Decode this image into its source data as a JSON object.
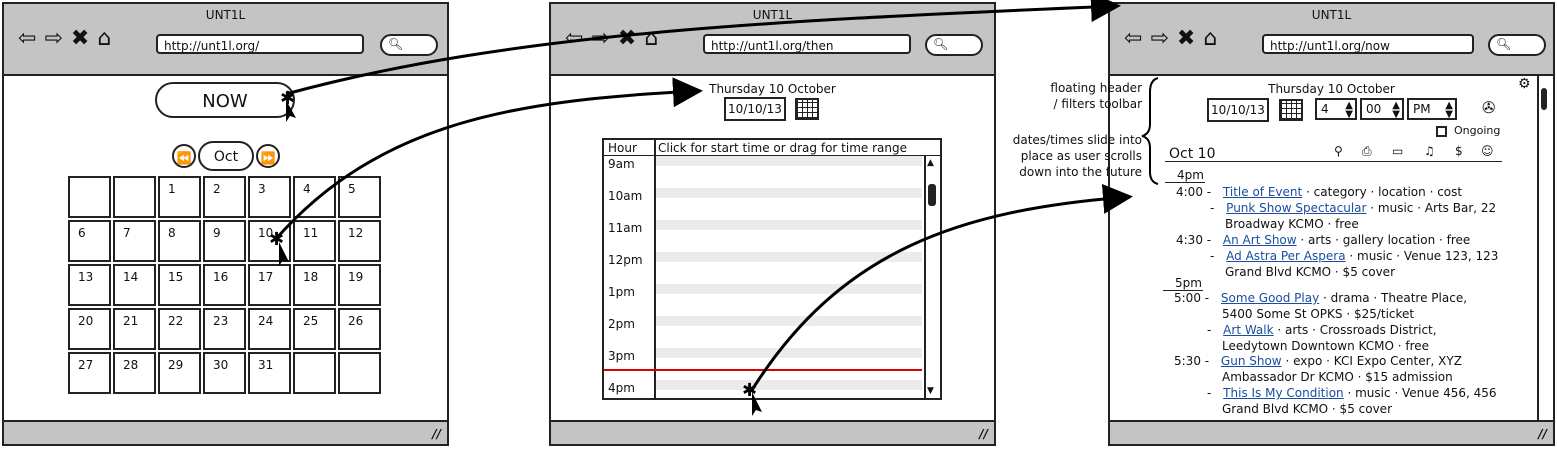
{
  "windows": {
    "left": {
      "title": "UNT1L",
      "url": "http://unt1l.org/"
    },
    "middle": {
      "title": "UNT1L",
      "url": "http://unt1l.org/then"
    },
    "right": {
      "title": "UNT1L",
      "url": "http://unt1l.org/now"
    }
  },
  "icons": {
    "back": "back-arrow-icon",
    "forward": "forward-arrow-icon",
    "stop": "close-x-icon",
    "home": "home-icon",
    "search": "search-icon",
    "calendar": "calendar-grid-icon",
    "gear": "gear-icon",
    "location": "location-icon",
    "category_icons": [
      "pin-icon",
      "camera-icon",
      "video-icon",
      "music-icon",
      "dollar-icon",
      "theater-icon"
    ]
  },
  "calendar": {
    "now_label": "NOW",
    "month": "Oct",
    "prev_label": "⏪",
    "next_label": "⏩",
    "cells": [
      "",
      "",
      "1",
      "2",
      "3",
      "4",
      "5",
      "6",
      "7",
      "8",
      "9",
      "10",
      "11",
      "12",
      "13",
      "14",
      "15",
      "16",
      "17",
      "18",
      "19",
      "20",
      "21",
      "22",
      "23",
      "24",
      "25",
      "26",
      "27",
      "28",
      "29",
      "30",
      "31",
      "",
      ""
    ]
  },
  "then": {
    "date_heading": "Thursday 10 October",
    "date_value": "10/10/13",
    "col_hour": "Hour",
    "col_hint": "Click for start time or drag for time range",
    "hours": [
      "9am",
      "10am",
      "11am",
      "12pm",
      "1pm",
      "2pm",
      "3pm",
      "4pm"
    ]
  },
  "now": {
    "date_heading": "Thursday 10 October",
    "date_value": "10/10/13",
    "hour": "4",
    "minute": "00",
    "ampm": "PM",
    "ongoing_label": "Ongoing",
    "day_label": "Oct 10",
    "groups": [
      {
        "label": "4pm",
        "events": [
          {
            "time": "4:00 -",
            "title": "Title of Event",
            "rest": " · category · location · cost"
          },
          {
            "time": "-",
            "title": "Punk Show Spectacular",
            "rest": " · music · Arts Bar, 22",
            "line2": "Broadway KCMO · free"
          },
          {
            "time": "4:30 -",
            "title": "An Art Show",
            "rest": " · arts · gallery location · free"
          },
          {
            "time": "-",
            "title": "Ad Astra Per Aspera",
            "rest": " · music · Venue 123, 123",
            "line2": "Grand Blvd KCMO · $5 cover"
          }
        ]
      },
      {
        "label": "5pm",
        "events": [
          {
            "time": "5:00 -",
            "title": "Some Good Play",
            "rest": " · drama · Theatre Place,",
            "line2": "5400 Some St OPKS · $25/ticket"
          },
          {
            "time": "-",
            "title": "Art Walk",
            "rest": " · arts · Crossroads District,",
            "line2": "Leedytown Downtown KCMO · free"
          },
          {
            "time": "5:30 -",
            "title": "Gun Show",
            "rest": " · expo · KCI Expo Center, XYZ",
            "line2": "Ambassador Dr KCMO · $15 admission"
          },
          {
            "time": "-",
            "title": "This Is My Condition",
            "rest": " · music · Venue 456, 456",
            "line2": "Grand Blvd KCMO · $5 cover"
          }
        ]
      }
    ]
  },
  "annotations": {
    "note1_line1": "floating header",
    "note1_line2": "/ filters toolbar",
    "note2_line1": "dates/times slide into",
    "note2_line2": "place as user scrolls",
    "note2_line3": "down into the future"
  }
}
